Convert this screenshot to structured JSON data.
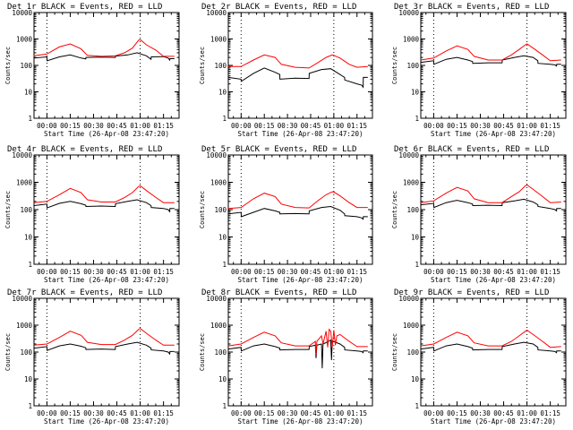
{
  "figure": {
    "xlabel": "Start Time (26-Apr-08 23:47:20)",
    "ylabel": "Counts/sec",
    "x_ticks": [
      "00:00",
      "00:15",
      "00:30",
      "00:45",
      "01:00",
      "01:15"
    ],
    "y_ticks": [
      "1",
      "10",
      "100",
      "1000",
      "10000"
    ],
    "legend_note": "BLACK = Events, RED = LLD"
  },
  "chart_data": [
    {
      "type": "line",
      "title": "Det 1r BLACK = Events, RED = LLD",
      "xlabel": "Start Time (26-Apr-08 23:47:20)",
      "ylabel": "Counts/sec",
      "yscale": "log",
      "ylim": [
        1,
        10000
      ],
      "xlim": [
        -8.3,
        85
      ],
      "x_ticks": [
        0,
        15,
        30,
        45,
        60,
        75
      ],
      "dotted_x": [
        0,
        60
      ],
      "series": [
        {
          "name": "Events",
          "color": "#000000",
          "x": [
            -8.3,
            0,
            0.1,
            8,
            15,
            22,
            25,
            25.1,
            35,
            44,
            44.1,
            52,
            58,
            64,
            67,
            67.1,
            75,
            78,
            79,
            79.1,
            82
          ],
          "values": [
            190,
            210,
            150,
            210,
            250,
            190,
            175,
            200,
            205,
            200,
            225,
            250,
            300,
            230,
            170,
            210,
            215,
            190,
            160,
            180,
            180
          ]
        },
        {
          "name": "LLD",
          "color": "#ff0000",
          "x": [
            -8.3,
            0,
            8,
            15,
            22,
            26,
            35,
            44,
            50,
            55,
            59,
            60,
            64,
            70,
            75,
            82
          ],
          "values": [
            230,
            270,
            500,
            650,
            420,
            240,
            220,
            230,
            300,
            450,
            900,
            950,
            600,
            380,
            220,
            220
          ]
        }
      ]
    },
    {
      "type": "line",
      "title": "Det 2r BLACK = Events, RED = LLD",
      "xlabel": "Start Time (26-Apr-08 23:47:20)",
      "ylabel": "Counts/sec",
      "yscale": "log",
      "ylim": [
        1,
        10000
      ],
      "xlim": [
        -8.3,
        85
      ],
      "x_ticks": [
        0,
        15,
        30,
        45,
        60,
        75
      ],
      "dotted_x": [
        0,
        60
      ],
      "series": [
        {
          "name": "Events",
          "color": "#000000",
          "x": [
            -8.3,
            0,
            0.1,
            8,
            15,
            22,
            25,
            25.1,
            35,
            44,
            44.1,
            52,
            58,
            64,
            67,
            67.1,
            75,
            78,
            79,
            79.1,
            82
          ],
          "values": [
            35,
            30,
            25,
            50,
            80,
            55,
            45,
            30,
            33,
            32,
            50,
            70,
            75,
            45,
            35,
            28,
            20,
            18,
            15,
            35,
            35
          ]
        },
        {
          "name": "LLD",
          "color": "#ff0000",
          "x": [
            -8.3,
            0,
            8,
            15,
            22,
            26,
            35,
            44,
            50,
            55,
            59,
            60,
            64,
            70,
            75,
            82
          ],
          "values": [
            90,
            90,
            160,
            250,
            200,
            110,
            85,
            80,
            130,
            200,
            250,
            240,
            190,
            110,
            85,
            90
          ]
        }
      ]
    },
    {
      "type": "line",
      "title": "Det 3r BLACK = Events, RED = LLD",
      "xlabel": "Start Time (26-Apr-08 23:47:20)",
      "ylabel": "Counts/sec",
      "yscale": "log",
      "ylim": [
        1,
        10000
      ],
      "xlim": [
        -8.3,
        85
      ],
      "x_ticks": [
        0,
        15,
        30,
        45,
        60,
        75
      ],
      "dotted_x": [
        0,
        60
      ],
      "series": [
        {
          "name": "Events",
          "color": "#000000",
          "x": [
            -8.3,
            0,
            0.1,
            8,
            15,
            22,
            25,
            25.1,
            35,
            44,
            44.1,
            52,
            58,
            64,
            67,
            67.1,
            75,
            78,
            79,
            79.1,
            82
          ],
          "values": [
            130,
            150,
            110,
            170,
            200,
            160,
            140,
            120,
            125,
            125,
            160,
            200,
            230,
            200,
            150,
            120,
            110,
            105,
            95,
            110,
            110
          ]
        },
        {
          "name": "LLD",
          "color": "#ff0000",
          "x": [
            -8.3,
            0,
            8,
            15,
            22,
            26,
            35,
            44,
            50,
            55,
            59,
            60,
            64,
            70,
            75,
            82
          ],
          "values": [
            160,
            190,
            350,
            550,
            400,
            220,
            160,
            160,
            250,
            400,
            600,
            650,
            450,
            250,
            150,
            160
          ]
        }
      ]
    },
    {
      "type": "line",
      "title": "Det 4r BLACK = Events, RED = LLD",
      "xlabel": "Start Time (26-Apr-08 23:47:20)",
      "ylabel": "Counts/sec",
      "yscale": "log",
      "ylim": [
        1,
        10000
      ],
      "xlim": [
        -8.3,
        85
      ],
      "x_ticks": [
        0,
        15,
        30,
        45,
        60,
        75
      ],
      "dotted_x": [
        0,
        60
      ],
      "series": [
        {
          "name": "Events",
          "color": "#000000",
          "x": [
            -8.3,
            0,
            0.1,
            8,
            15,
            22,
            25,
            25.1,
            35,
            44,
            44.1,
            52,
            58,
            64,
            67,
            67.1,
            75,
            78,
            79,
            79.1,
            82
          ],
          "values": [
            140,
            160,
            115,
            170,
            200,
            165,
            145,
            130,
            135,
            130,
            165,
            200,
            230,
            180,
            140,
            120,
            110,
            100,
            85,
            110,
            110
          ]
        },
        {
          "name": "LLD",
          "color": "#ff0000",
          "x": [
            -8.3,
            0,
            8,
            15,
            22,
            26,
            35,
            44,
            50,
            55,
            59,
            60,
            64,
            70,
            75,
            82
          ],
          "values": [
            180,
            200,
            350,
            600,
            420,
            230,
            190,
            190,
            280,
            420,
            700,
            750,
            500,
            280,
            180,
            180
          ]
        }
      ]
    },
    {
      "type": "line",
      "title": "Det 5r BLACK = Events, RED = LLD",
      "xlabel": "Start Time (26-Apr-08 23:47:20)",
      "ylabel": "Counts/sec",
      "yscale": "log",
      "ylim": [
        1,
        10000
      ],
      "xlim": [
        -8.3,
        85
      ],
      "x_ticks": [
        0,
        15,
        30,
        45,
        60,
        75
      ],
      "dotted_x": [
        0,
        60
      ],
      "series": [
        {
          "name": "Events",
          "color": "#000000",
          "x": [
            -8.3,
            0,
            0.1,
            8,
            15,
            22,
            25,
            25.1,
            35,
            44,
            44.1,
            52,
            58,
            64,
            67,
            67.1,
            75,
            78,
            79,
            79.1,
            82
          ],
          "values": [
            70,
            80,
            55,
            80,
            110,
            90,
            80,
            70,
            72,
            70,
            90,
            120,
            130,
            95,
            70,
            60,
            55,
            50,
            45,
            55,
            55
          ]
        },
        {
          "name": "LLD",
          "color": "#ff0000",
          "x": [
            -8.3,
            0,
            8,
            15,
            22,
            26,
            35,
            44,
            50,
            55,
            59,
            60,
            64,
            70,
            75,
            82
          ],
          "values": [
            110,
            120,
            250,
            400,
            300,
            160,
            120,
            115,
            220,
            350,
            450,
            440,
            320,
            180,
            120,
            120
          ]
        }
      ]
    },
    {
      "type": "line",
      "title": "Det 6r BLACK = Events, RED = LLD",
      "xlabel": "Start Time (26-Apr-08 23:47:20)",
      "ylabel": "Counts/sec",
      "yscale": "log",
      "ylim": [
        1,
        10000
      ],
      "xlim": [
        -8.3,
        85
      ],
      "x_ticks": [
        0,
        15,
        30,
        45,
        60,
        75
      ],
      "dotted_x": [
        0,
        60
      ],
      "series": [
        {
          "name": "Events",
          "color": "#000000",
          "x": [
            -8.3,
            0,
            0.1,
            8,
            15,
            22,
            25,
            25.1,
            35,
            44,
            44.1,
            52,
            58,
            64,
            67,
            67.1,
            75,
            78,
            79,
            79.1,
            82
          ],
          "values": [
            150,
            170,
            120,
            180,
            220,
            180,
            160,
            140,
            145,
            140,
            180,
            210,
            240,
            190,
            150,
            130,
            110,
            100,
            90,
            110,
            110
          ]
        },
        {
          "name": "LLD",
          "color": "#ff0000",
          "x": [
            -8.3,
            0,
            8,
            15,
            22,
            26,
            35,
            44,
            50,
            55,
            59,
            60,
            64,
            70,
            75,
            82
          ],
          "values": [
            180,
            210,
            400,
            650,
            480,
            250,
            180,
            180,
            300,
            450,
            750,
            800,
            550,
            300,
            180,
            190
          ]
        }
      ]
    },
    {
      "type": "line",
      "title": "Det 7r BLACK = Events, RED = LLD",
      "xlabel": "Start Time (26-Apr-08 23:47:20)",
      "ylabel": "Counts/sec",
      "yscale": "log",
      "ylim": [
        1,
        10000
      ],
      "xlim": [
        -8.3,
        85
      ],
      "x_ticks": [
        0,
        15,
        30,
        45,
        60,
        75
      ],
      "dotted_x": [
        0,
        60
      ],
      "series": [
        {
          "name": "Events",
          "color": "#000000",
          "x": [
            -8.3,
            0,
            0.1,
            8,
            15,
            22,
            25,
            25.1,
            35,
            44,
            44.1,
            52,
            58,
            64,
            67,
            67.1,
            75,
            78,
            79,
            79.1,
            82
          ],
          "values": [
            140,
            160,
            115,
            170,
            200,
            165,
            145,
            125,
            130,
            125,
            160,
            200,
            230,
            180,
            140,
            120,
            110,
            100,
            85,
            105,
            105
          ]
        },
        {
          "name": "LLD",
          "color": "#ff0000",
          "x": [
            -8.3,
            0,
            8,
            15,
            22,
            26,
            35,
            44,
            50,
            55,
            59,
            60,
            64,
            70,
            75,
            82
          ],
          "values": [
            180,
            200,
            350,
            600,
            420,
            230,
            190,
            190,
            280,
            420,
            700,
            750,
            500,
            280,
            180,
            180
          ]
        }
      ]
    },
    {
      "type": "line",
      "title": "Det 8r BLACK = Events, RED = LLD",
      "xlabel": "Start Time (26-Apr-08 23:47:20)",
      "ylabel": "Counts/sec",
      "yscale": "log",
      "ylim": [
        1,
        10000
      ],
      "xlim": [
        -8.3,
        85
      ],
      "x_ticks": [
        0,
        15,
        30,
        45,
        60,
        75
      ],
      "dotted_x": [
        0,
        60
      ],
      "series": [
        {
          "name": "Events",
          "color": "#000000",
          "x": [
            -8.3,
            0,
            0.1,
            8,
            15,
            22,
            25,
            25.1,
            35,
            44,
            44.1,
            48,
            48.5,
            49,
            52,
            52.5,
            53,
            56,
            58,
            58.5,
            59,
            64,
            67,
            67.1,
            75,
            78,
            79,
            79.1,
            82
          ],
          "values": [
            130,
            150,
            110,
            170,
            200,
            160,
            140,
            120,
            125,
            125,
            160,
            180,
            60,
            180,
            200,
            25,
            200,
            240,
            280,
            50,
            260,
            200,
            150,
            120,
            110,
            105,
            95,
            110,
            110
          ]
        },
        {
          "name": "LLD",
          "color": "#ff0000",
          "x": [
            -8.3,
            0,
            8,
            15,
            22,
            26,
            35,
            44,
            48,
            48.5,
            49,
            52,
            53,
            55,
            56,
            57,
            58,
            59,
            60,
            61,
            62,
            64,
            70,
            75,
            82
          ],
          "values": [
            170,
            200,
            350,
            550,
            400,
            220,
            170,
            170,
            250,
            80,
            250,
            400,
            200,
            600,
            150,
            700,
            600,
            150,
            650,
            180,
            400,
            450,
            250,
            160,
            160
          ]
        }
      ]
    },
    {
      "type": "line",
      "title": "Det 9r BLACK = Events, RED = LLD",
      "xlabel": "Start Time (26-Apr-08 23:47:20)",
      "ylabel": "Counts/sec",
      "yscale": "log",
      "ylim": [
        1,
        10000
      ],
      "xlim": [
        -8.3,
        85
      ],
      "x_ticks": [
        0,
        15,
        30,
        45,
        60,
        75
      ],
      "dotted_x": [
        0,
        60
      ],
      "series": [
        {
          "name": "Events",
          "color": "#000000",
          "x": [
            -8.3,
            0,
            0.1,
            8,
            15,
            22,
            25,
            25.1,
            35,
            44,
            44.1,
            52,
            58,
            64,
            67,
            67.1,
            75,
            78,
            79,
            79.1,
            82
          ],
          "values": [
            130,
            150,
            110,
            170,
            200,
            160,
            140,
            120,
            125,
            125,
            160,
            200,
            230,
            200,
            150,
            120,
            110,
            105,
            95,
            110,
            110
          ]
        },
        {
          "name": "LLD",
          "color": "#ff0000",
          "x": [
            -8.3,
            0,
            8,
            15,
            22,
            26,
            35,
            44,
            50,
            55,
            59,
            60,
            64,
            70,
            75,
            82
          ],
          "values": [
            170,
            200,
            350,
            550,
            400,
            220,
            170,
            170,
            250,
            400,
            600,
            650,
            450,
            250,
            150,
            160
          ]
        }
      ]
    }
  ]
}
